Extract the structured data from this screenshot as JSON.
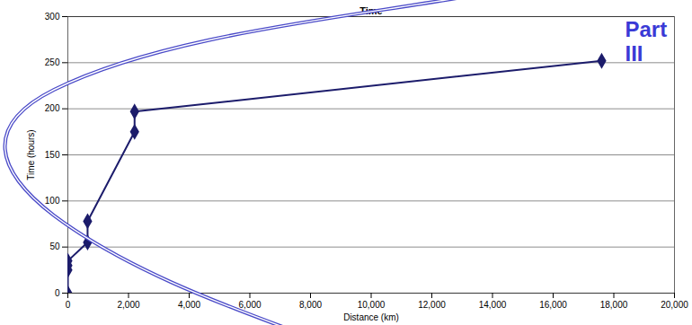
{
  "chart_data": {
    "type": "line",
    "title": "Time",
    "x_label": "Distance (km)",
    "y_label": "Time (hours)",
    "annotation": "Part\nIII",
    "x": [
      0,
      0,
      0,
      0,
      650,
      650,
      2200,
      2200,
      17600
    ],
    "values": [
      0,
      25,
      30,
      35,
      55,
      78,
      175,
      197,
      252
    ],
    "color": "#1c1c6b",
    "marker": "diamond",
    "xlim": [
      0,
      20000
    ],
    "xticks": [
      0,
      {
        "value": 2000,
        "label": "2,000"
      },
      {
        "value": 4000,
        "label": "4,000"
      },
      {
        "value": 6000,
        "label": "6,000"
      },
      {
        "value": 8000,
        "label": "8,000"
      },
      {
        "value": 10000,
        "label": "10,000"
      },
      {
        "value": 12000,
        "label": "12,000"
      },
      {
        "value": 14000,
        "label": "14,000"
      },
      {
        "value": 16000,
        "label": "16,000"
      },
      {
        "value": 18000,
        "label": "18,000"
      },
      {
        "value": 20000,
        "label": "20,000"
      }
    ],
    "ylim": [
      0,
      300
    ],
    "yticks": [
      0,
      50,
      100,
      150,
      200,
      250,
      300
    ],
    "grid": true
  }
}
